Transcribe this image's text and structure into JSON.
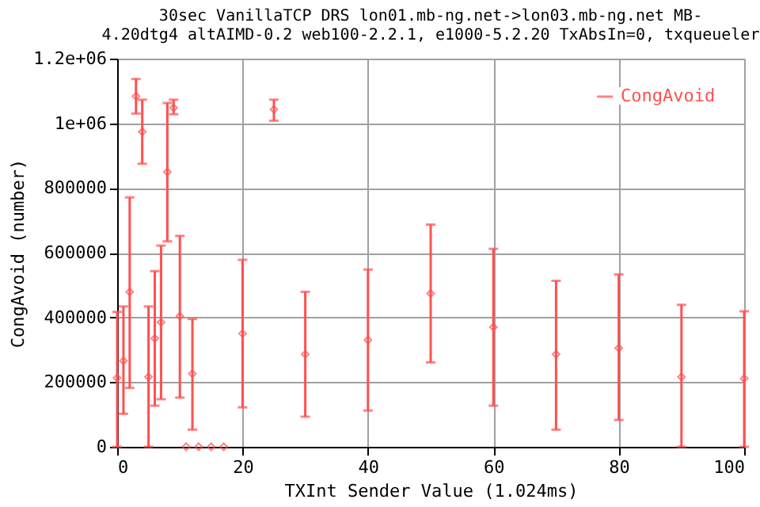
{
  "chart_data": {
    "type": "scatter",
    "title": "30sec VanillaTCP DRS lon01.mb-ng.net->lon03.mb-ng.net MB-\n4.20dtg4 altAIMD-0.2 web100-2.2.1, e1000-5.2.20 TxAbsIn=0, txqueueler",
    "xlabel": "TXInt Sender Value (1.024ms)",
    "ylabel": "CongAvoid (number)",
    "x": [
      0,
      1,
      2,
      3,
      4,
      5,
      6,
      7,
      8,
      9,
      10,
      11,
      12,
      13,
      15,
      17,
      20,
      25,
      30,
      40,
      50,
      60,
      70,
      80,
      90,
      100
    ],
    "series": [
      {
        "name": "CongAvoid",
        "color": "#ff5050",
        "values": [
          213000,
          266000,
          479000,
          1084000,
          974000,
          216000,
          335000,
          385000,
          850000,
          1048000,
          404000,
          0,
          226000,
          0,
          0,
          0,
          350000,
          1043000,
          286000,
          330000,
          474000,
          370000,
          286000,
          305000,
          216000,
          211000
        ],
        "errors": [
          [
            0,
            417000
          ],
          [
            102000,
            434000
          ],
          [
            182000,
            771000
          ],
          [
            1030000,
            1137000
          ],
          [
            875000,
            1073000
          ],
          [
            0,
            434000
          ],
          [
            127000,
            543000
          ],
          [
            147000,
            622000
          ],
          [
            635000,
            1063000
          ],
          [
            1028000,
            1073000
          ],
          [
            152000,
            652000
          ],
          null,
          [
            53000,
            395000
          ],
          null,
          null,
          null,
          [
            122000,
            578000
          ],
          [
            1008000,
            1073000
          ],
          [
            93000,
            479000
          ],
          [
            112000,
            548000
          ],
          [
            261000,
            687000
          ],
          [
            127000,
            612000
          ],
          [
            53000,
            513000
          ],
          [
            83000,
            533000
          ],
          [
            0,
            439000
          ],
          [
            0,
            419000
          ]
        ]
      }
    ],
    "xlim": [
      0,
      100
    ],
    "xticks": [
      0,
      20,
      40,
      60,
      80,
      100
    ],
    "ylim": [
      0,
      1200000
    ],
    "yticks": [
      0,
      200000,
      400000,
      600000,
      800000,
      {
        "value": 1000000,
        "label": "1e+06"
      },
      {
        "value": 1200000,
        "label": "1.2e+06"
      }
    ],
    "grid": true,
    "legend": "top right",
    "marker": "diamond"
  }
}
